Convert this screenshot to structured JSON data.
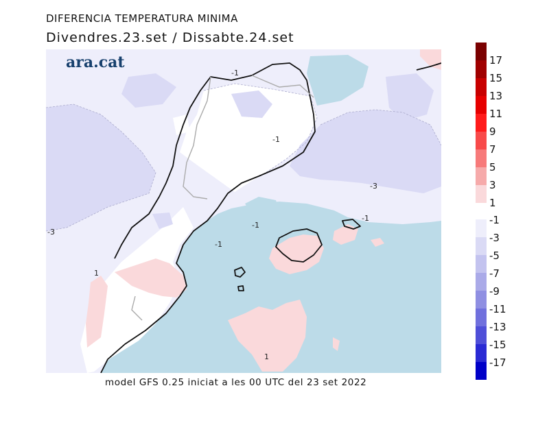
{
  "header": {
    "title": "DIFERENCIA TEMPERATURA MINIMA",
    "subtitle": "Divendres.23.set / Dissabte.24.set"
  },
  "brand": "ara.cat",
  "footer": "model GFS 0.25 iniciat a les 00 UTC del 23 set 2022",
  "map": {
    "contour_labels": [
      "-1",
      "-1",
      "-1",
      "-1",
      "-1",
      "-3",
      "-3",
      "1",
      "1"
    ],
    "sea_color": "#bcdbe8",
    "land_color": "#ffffff",
    "light_negative_color": "#eeeefb",
    "negative_color": "#dadaf5",
    "positive_color": "#fad9db"
  },
  "colorbar": {
    "positive": [
      {
        "label": "17",
        "color": "#7a0000"
      },
      {
        "label": "15",
        "color": "#a00000"
      },
      {
        "label": "13",
        "color": "#c80000"
      },
      {
        "label": "11",
        "color": "#e60000"
      },
      {
        "label": "9",
        "color": "#ff1b1b"
      },
      {
        "label": "7",
        "color": "#f84a4a"
      },
      {
        "label": "5",
        "color": "#f77a7a"
      },
      {
        "label": "3",
        "color": "#f6aaaa"
      },
      {
        "label": "1",
        "color": "#fad9db"
      }
    ],
    "negative": [
      {
        "label": "-1",
        "color": "#eeeefb"
      },
      {
        "label": "-3",
        "color": "#dadaf5"
      },
      {
        "label": "-5",
        "color": "#c3c3ef"
      },
      {
        "label": "-7",
        "color": "#aaaae8"
      },
      {
        "label": "-9",
        "color": "#8f8fe2"
      },
      {
        "label": "-11",
        "color": "#7070dd"
      },
      {
        "label": "-13",
        "color": "#4f4fd8"
      },
      {
        "label": "-15",
        "color": "#2a2ad4"
      },
      {
        "label": "-17",
        "color": "#0000c8"
      }
    ]
  }
}
